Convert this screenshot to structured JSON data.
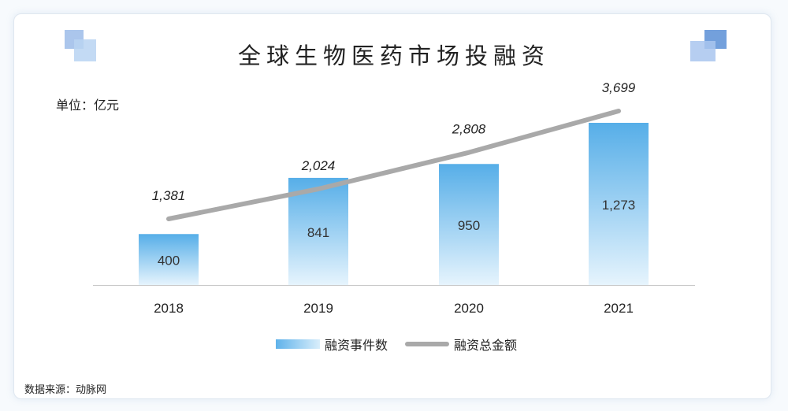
{
  "header": {
    "title": "全球生物医药市场投融资",
    "unit": "单位：亿元",
    "source": "数据来源：动脉网"
  },
  "colors": {
    "bar_top": "#56aee8",
    "bar_bottom": "#e6f4fd",
    "line": "#a9a9a9",
    "accent_blue": "#5b8fd6"
  },
  "chart_data": {
    "type": "bar+line",
    "categories": [
      "2018",
      "2019",
      "2020",
      "2021"
    ],
    "series": [
      {
        "name": "融资事件数",
        "type": "bar",
        "values": [
          400,
          841,
          950,
          1273
        ],
        "labels": [
          "400",
          "841",
          "950",
          "1,273"
        ]
      },
      {
        "name": "融资总金额",
        "type": "line",
        "values": [
          1381,
          2024,
          2808,
          3699
        ],
        "labels": [
          "1,381",
          "2,024",
          "2,808",
          "3,699"
        ]
      }
    ],
    "legend_position": "bottom-center",
    "grid": false
  }
}
